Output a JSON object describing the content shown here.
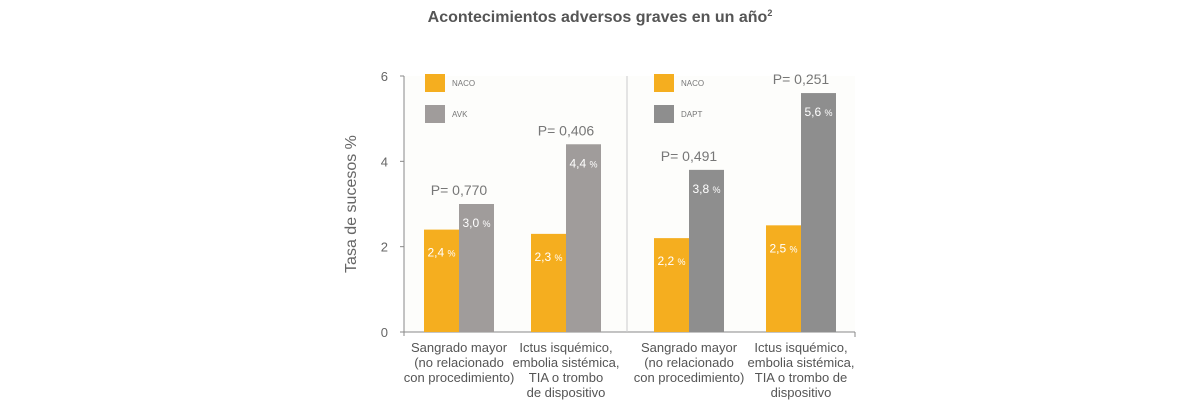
{
  "chart_data": {
    "type": "bar",
    "title": "Acontecimientos adversos graves en un año",
    "title_superscript": "2",
    "ylabel": "Tasa de sucesos %",
    "ylim": [
      0,
      6
    ],
    "yticks": [
      "0",
      "2",
      "4",
      "6"
    ],
    "grid": false,
    "panels": [
      {
        "legend": [
          {
            "name": "NACO",
            "color": "#f5ae1f"
          },
          {
            "name": "AVK",
            "color": "#a09c9b"
          }
        ],
        "groups": [
          {
            "category": [
              "Sangrado mayor",
              "(no relacionado",
              "con procedimiento)"
            ],
            "values": [
              2.4,
              3.0
            ],
            "labels": [
              "2,4",
              "3,0"
            ],
            "p": "P= 0,770"
          },
          {
            "category": [
              "Ictus isquémico,",
              "embolia sistémica,",
              "TIA o trombo",
              "de dispositivo"
            ],
            "values": [
              2.3,
              4.4
            ],
            "labels": [
              "2,3",
              "4,4"
            ],
            "p": "P= 0,406"
          }
        ]
      },
      {
        "legend": [
          {
            "name": "NACO",
            "color": "#f5ae1f"
          },
          {
            "name": "DAPT",
            "color": "#8e8e8e"
          }
        ],
        "groups": [
          {
            "category": [
              "Sangrado mayor",
              "(no relacionado",
              "con procedimiento)"
            ],
            "values": [
              2.2,
              3.8
            ],
            "labels": [
              "2,2",
              "3,8"
            ],
            "p": "P= 0,491"
          },
          {
            "category": [
              "Ictus isquémico,",
              "embolia sistémica,",
              "TIA o trombo de",
              "dispositivo"
            ],
            "values": [
              2.5,
              5.6
            ],
            "labels": [
              "2,5",
              "5,6"
            ],
            "p": "P= 0,251"
          }
        ]
      }
    ],
    "unit": "%"
  }
}
